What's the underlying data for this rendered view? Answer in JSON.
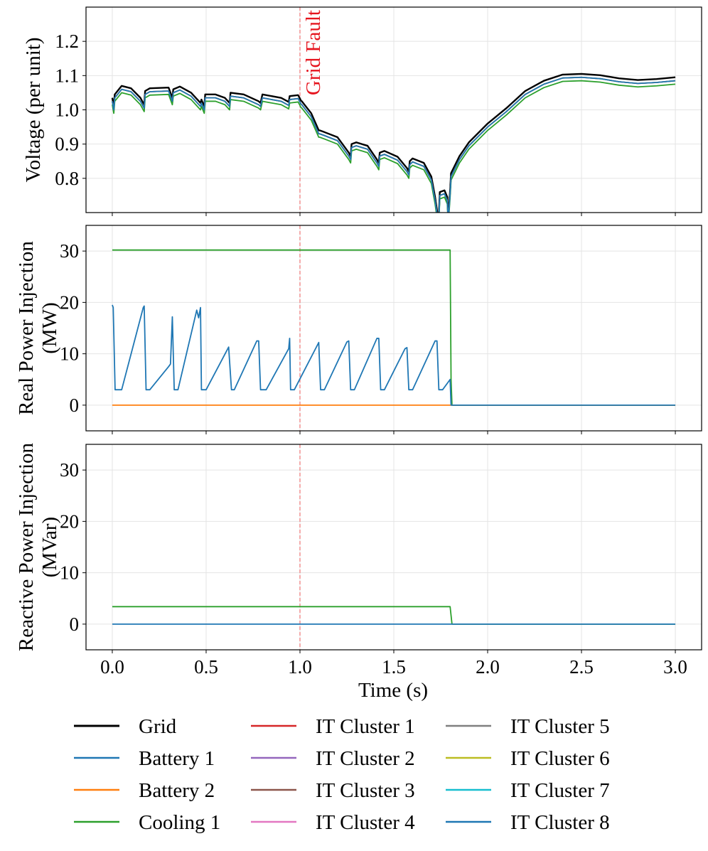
{
  "chart_data": [
    {
      "type": "line",
      "panel": "voltage",
      "ylabel": "Voltage (per unit)",
      "xlim": [
        -0.14,
        3.14
      ],
      "ylim": [
        0.7,
        1.3
      ],
      "yticks": [
        0.8,
        0.9,
        1.0,
        1.1,
        1.2
      ],
      "ytick_labels": [
        "0.8",
        "0.9",
        "1.0",
        "1.1",
        "1.2"
      ],
      "annotation": {
        "text": "Grid Fault",
        "x": 1.0
      },
      "series": [
        {
          "name": "Grid",
          "color": "#000000",
          "offset": 0.005,
          "points": [
            [
              0,
              1.03
            ],
            [
              0.008,
              1.005
            ],
            [
              0.013,
              1.04
            ],
            [
              0.05,
              1.065
            ],
            [
              0.1,
              1.058
            ],
            [
              0.15,
              1.03
            ],
            [
              0.17,
              1.01
            ],
            [
              0.175,
              1.05
            ],
            [
              0.2,
              1.058
            ],
            [
              0.3,
              1.06
            ],
            [
              0.32,
              1.03
            ],
            [
              0.325,
              1.055
            ],
            [
              0.36,
              1.063
            ],
            [
              0.42,
              1.045
            ],
            [
              0.47,
              1.015
            ],
            [
              0.475,
              1.025
            ],
            [
              0.49,
              1.005
            ],
            [
              0.495,
              1.04
            ],
            [
              0.55,
              1.04
            ],
            [
              0.6,
              1.03
            ],
            [
              0.625,
              1.015
            ],
            [
              0.63,
              1.045
            ],
            [
              0.7,
              1.04
            ],
            [
              0.78,
              1.02
            ],
            [
              0.79,
              1.015
            ],
            [
              0.8,
              1.04
            ],
            [
              0.9,
              1.03
            ],
            [
              0.94,
              1.018
            ],
            [
              0.945,
              1.035
            ],
            [
              0.99,
              1.038
            ],
            [
              1.0,
              1.028
            ],
            [
              1.005,
              1.022
            ],
            [
              1.01,
              1.02
            ],
            [
              1.06,
              0.985
            ],
            [
              1.1,
              0.935
            ],
            [
              1.105,
              0.935
            ],
            [
              1.13,
              0.93
            ],
            [
              1.2,
              0.915
            ],
            [
              1.26,
              0.87
            ],
            [
              1.27,
              0.86
            ],
            [
              1.275,
              0.895
            ],
            [
              1.3,
              0.9
            ],
            [
              1.36,
              0.89
            ],
            [
              1.41,
              0.85
            ],
            [
              1.42,
              0.84
            ],
            [
              1.425,
              0.87
            ],
            [
              1.45,
              0.875
            ],
            [
              1.52,
              0.858
            ],
            [
              1.57,
              0.825
            ],
            [
              1.58,
              0.815
            ],
            [
              1.585,
              0.845
            ],
            [
              1.6,
              0.853
            ],
            [
              1.66,
              0.84
            ],
            [
              1.7,
              0.8
            ],
            [
              1.72,
              0.74
            ],
            [
              1.733,
              0.69
            ],
            [
              1.74,
              0.69
            ],
            [
              1.745,
              0.755
            ],
            [
              1.77,
              0.76
            ],
            [
              1.785,
              0.74
            ],
            [
              1.79,
              0.68
            ],
            [
              1.8,
              0.76
            ],
            [
              1.805,
              0.81
            ],
            [
              1.85,
              0.86
            ],
            [
              1.9,
              0.9
            ],
            [
              2.0,
              0.955
            ],
            [
              2.1,
              1.0
            ],
            [
              2.2,
              1.05
            ],
            [
              2.3,
              1.08
            ],
            [
              2.4,
              1.098
            ],
            [
              2.5,
              1.1
            ],
            [
              2.6,
              1.096
            ],
            [
              2.7,
              1.087
            ],
            [
              2.8,
              1.082
            ],
            [
              2.9,
              1.085
            ],
            [
              3.0,
              1.09
            ]
          ]
        },
        {
          "name": "Battery 1",
          "color": "#1f77b4",
          "offset": -0.005
        },
        {
          "name": "Battery 2",
          "color": "#ff7f0e",
          "offset": -0.005
        },
        {
          "name": "Cooling 1",
          "color": "#2ca02c",
          "offset": -0.015
        },
        {
          "name": "IT Cluster 8",
          "color": "#1f77b4",
          "offset": -0.005
        }
      ]
    },
    {
      "type": "line",
      "panel": "real-power",
      "ylabel": "Real Power Injection (MW)",
      "ylabel_lines": [
        "Real Power Injection",
        "(MW)"
      ],
      "xlim": [
        -0.14,
        3.14
      ],
      "ylim": [
        -5,
        35
      ],
      "yticks": [
        0,
        10,
        20,
        30
      ],
      "ytick_labels": [
        "0",
        "10",
        "20",
        "30"
      ],
      "series": [
        {
          "name": "Cooling 1",
          "color": "#2ca02c",
          "points": [
            [
              0,
              30.2
            ],
            [
              1.8,
              30.2
            ],
            [
              1.805,
              5
            ],
            [
              1.81,
              0
            ],
            [
              3.0,
              0
            ]
          ]
        },
        {
          "name": "Battery 2",
          "color": "#ff7f0e",
          "points": [
            [
              0,
              0
            ],
            [
              3.0,
              0
            ]
          ]
        },
        {
          "name": "Battery 1",
          "color": "#1f77b4",
          "points": [
            [
              0,
              19.5
            ],
            [
              0.005,
              19
            ],
            [
              0.015,
              3
            ],
            [
              0.05,
              3
            ],
            [
              0.165,
              19
            ],
            [
              0.17,
              19.3
            ],
            [
              0.18,
              3
            ],
            [
              0.2,
              3
            ],
            [
              0.3,
              7.5
            ],
            [
              0.31,
              8
            ],
            [
              0.32,
              17.2
            ],
            [
              0.33,
              3
            ],
            [
              0.35,
              3
            ],
            [
              0.45,
              18.5
            ],
            [
              0.46,
              17
            ],
            [
              0.47,
              19
            ],
            [
              0.475,
              3
            ],
            [
              0.5,
              3
            ],
            [
              0.62,
              11.3
            ],
            [
              0.635,
              3
            ],
            [
              0.65,
              3
            ],
            [
              0.77,
              12.5
            ],
            [
              0.78,
              12.5
            ],
            [
              0.79,
              3
            ],
            [
              0.82,
              3
            ],
            [
              0.94,
              11
            ],
            [
              0.945,
              13
            ],
            [
              0.95,
              3
            ],
            [
              0.97,
              3
            ],
            [
              1.1,
              12.2
            ],
            [
              1.11,
              3
            ],
            [
              1.13,
              3
            ],
            [
              1.25,
              12.3
            ],
            [
              1.26,
              12.5
            ],
            [
              1.27,
              3
            ],
            [
              1.29,
              3
            ],
            [
              1.41,
              13
            ],
            [
              1.42,
              13
            ],
            [
              1.43,
              3
            ],
            [
              1.45,
              3
            ],
            [
              1.56,
              11
            ],
            [
              1.57,
              11.2
            ],
            [
              1.58,
              3
            ],
            [
              1.6,
              3
            ],
            [
              1.72,
              12.5
            ],
            [
              1.73,
              12.5
            ],
            [
              1.74,
              3
            ],
            [
              1.76,
              3
            ],
            [
              1.8,
              5
            ],
            [
              1.805,
              0
            ],
            [
              3.0,
              0
            ]
          ]
        }
      ]
    },
    {
      "type": "line",
      "panel": "reactive-power",
      "ylabel": "Reactive Power Injection (MVar)",
      "ylabel_lines": [
        "Reactive Power Injection",
        "(MVar)"
      ],
      "xlabel": "Time (s)",
      "xlim": [
        -0.14,
        3.14
      ],
      "ylim": [
        -5,
        35
      ],
      "yticks": [
        0,
        10,
        20,
        30
      ],
      "ytick_labels": [
        "0",
        "10",
        "20",
        "30"
      ],
      "xticks": [
        0.0,
        0.5,
        1.0,
        1.5,
        2.0,
        2.5,
        3.0
      ],
      "xtick_labels": [
        "0.0",
        "0.5",
        "1.0",
        "1.5",
        "2.0",
        "2.5",
        "3.0"
      ],
      "series": [
        {
          "name": "Cooling 1",
          "color": "#2ca02c",
          "points": [
            [
              0,
              3.4
            ],
            [
              1.8,
              3.4
            ],
            [
              1.81,
              0
            ],
            [
              3.0,
              0
            ]
          ]
        },
        {
          "name": "Battery 1",
          "color": "#1f77b4",
          "points": [
            [
              0,
              0
            ],
            [
              3.0,
              0
            ]
          ]
        }
      ]
    }
  ],
  "legend": {
    "placement": "bottom",
    "entries": [
      {
        "label": "Grid",
        "color": "#000000"
      },
      {
        "label": "Battery 1",
        "color": "#1f77b4"
      },
      {
        "label": "Battery 2",
        "color": "#ff7f0e"
      },
      {
        "label": "Cooling 1",
        "color": "#2ca02c"
      },
      {
        "label": "IT Cluster 1",
        "color": "#d62728"
      },
      {
        "label": "IT Cluster 2",
        "color": "#9467bd"
      },
      {
        "label": "IT Cluster 3",
        "color": "#8c564b"
      },
      {
        "label": "IT Cluster 4",
        "color": "#e377c2"
      },
      {
        "label": "IT Cluster 5",
        "color": "#7f7f7f"
      },
      {
        "label": "IT Cluster 6",
        "color": "#bcbd22"
      },
      {
        "label": "IT Cluster 7",
        "color": "#17becf"
      },
      {
        "label": "IT Cluster 8",
        "color": "#1f77b4"
      }
    ]
  }
}
